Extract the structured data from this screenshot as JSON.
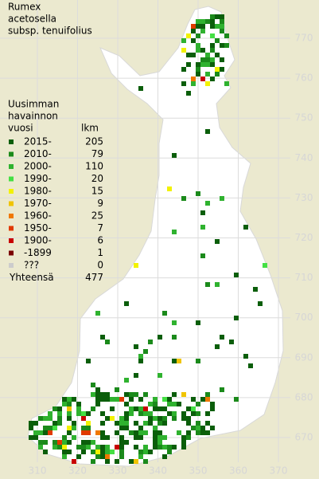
{
  "title": [
    "Rumex",
    "acetosella",
    "subsp. tenuifolius"
  ],
  "legend": {
    "header": [
      "Uusimman",
      "havainnon"
    ],
    "year_heading": "vuosi",
    "count_heading": "lkm",
    "rows": [
      {
        "label": "2015-",
        "count": 205,
        "color": "#0b5e0b"
      },
      {
        "label": "2010-",
        "count": 79,
        "color": "#1b8a1b"
      },
      {
        "label": "2000-",
        "count": 110,
        "color": "#2fb22f"
      },
      {
        "label": "1990-",
        "count": 20,
        "color": "#44e044"
      },
      {
        "label": "1980-",
        "count": 15,
        "color": "#f2f200"
      },
      {
        "label": "1970-",
        "count": 9,
        "color": "#f0c400"
      },
      {
        "label": "1960-",
        "count": 25,
        "color": "#f07800"
      },
      {
        "label": "1950-",
        "count": 7,
        "color": "#e03a00"
      },
      {
        "label": "1900-",
        "count": 6,
        "color": "#c80000"
      },
      {
        "label": "-1899",
        "count": 1,
        "color": "#7a0000"
      },
      {
        "label": "???",
        "count": 0,
        "color": "#cccccc"
      }
    ],
    "total": {
      "label": "Yhteensä",
      "count": 477
    }
  },
  "axes": {
    "x_ticks": [
      310,
      320,
      330,
      340,
      350,
      360,
      370
    ],
    "y_ticks": [
      670,
      680,
      690,
      700,
      710,
      720,
      730,
      740,
      750,
      760,
      770
    ]
  }
}
